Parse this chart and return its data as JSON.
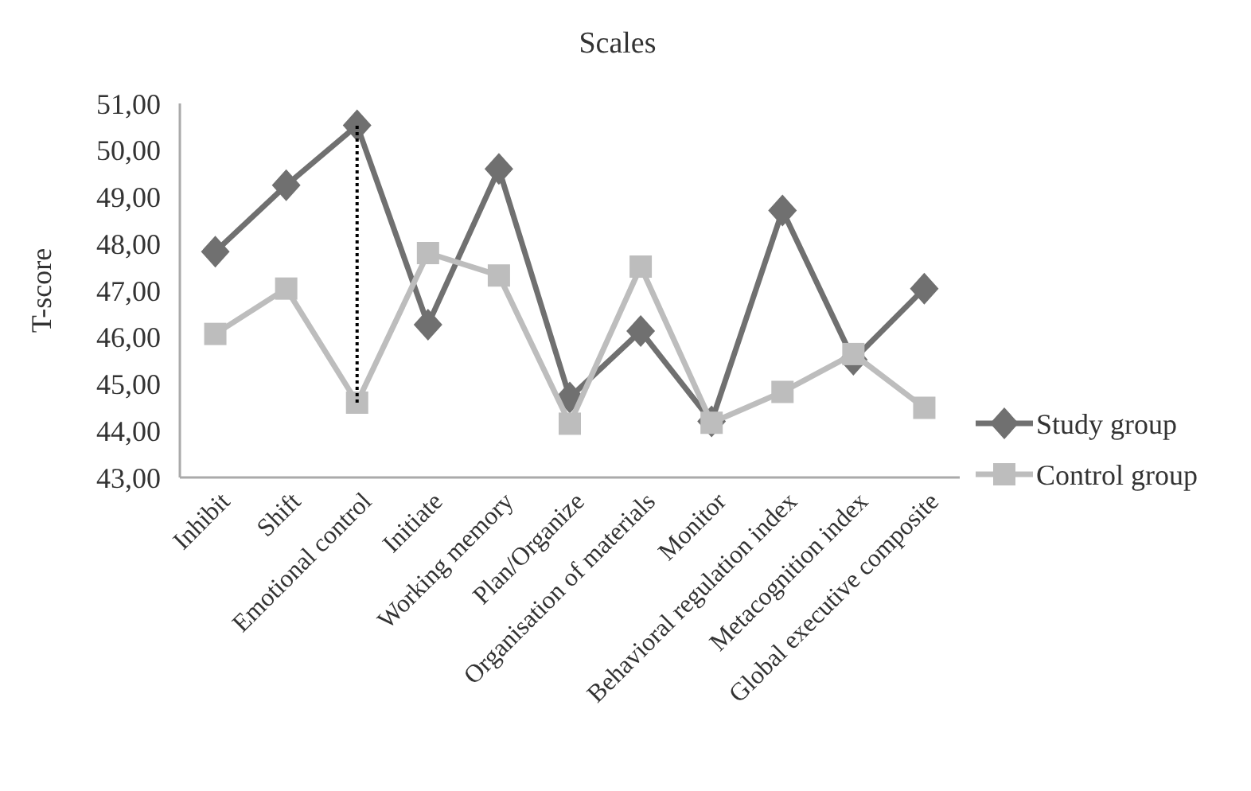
{
  "chart_data": {
    "type": "line",
    "title": "Scales",
    "ylabel": "T-score",
    "categories": [
      "Inhibit",
      "Shift",
      "Emotional control",
      "Initiate",
      "Working memory",
      "Plan/Organize",
      "Organisation of materials",
      "Monitor",
      "Behavioral regulation index",
      "Metacognition index",
      "Global executive composite"
    ],
    "series": [
      {
        "name": "Study group",
        "color": "#707070",
        "marker": "diamond",
        "values": [
          47.83,
          49.25,
          50.53,
          46.27,
          49.6,
          44.71,
          46.13,
          44.2,
          48.71,
          45.52,
          47.04
        ]
      },
      {
        "name": "Control group",
        "color": "#bdbdbd",
        "marker": "square",
        "values": [
          46.07,
          47.04,
          44.6,
          47.8,
          47.32,
          44.15,
          47.51,
          44.17,
          44.83,
          45.64,
          44.49
        ]
      },
      {
        "color": "#000000",
        "marker": "none",
        "line_style": "dotted",
        "x": [
          "Emotional control",
          "Emotional control"
        ],
        "values": [
          44.6,
          50.53
        ]
      }
    ],
    "ylim": [
      43,
      51
    ],
    "yticks": [
      {
        "value": 43,
        "label": "43,00"
      },
      {
        "value": 44,
        "label": "44,00"
      },
      {
        "value": 45,
        "label": "45,00"
      },
      {
        "value": 46,
        "label": "46,00"
      },
      {
        "value": 47,
        "label": "47,00"
      },
      {
        "value": 48,
        "label": "48,00"
      },
      {
        "value": 49,
        "label": "49,00"
      },
      {
        "value": 50,
        "label": "50,00"
      },
      {
        "value": 51,
        "label": "51,00"
      }
    ],
    "grid": false,
    "legend": "right"
  }
}
